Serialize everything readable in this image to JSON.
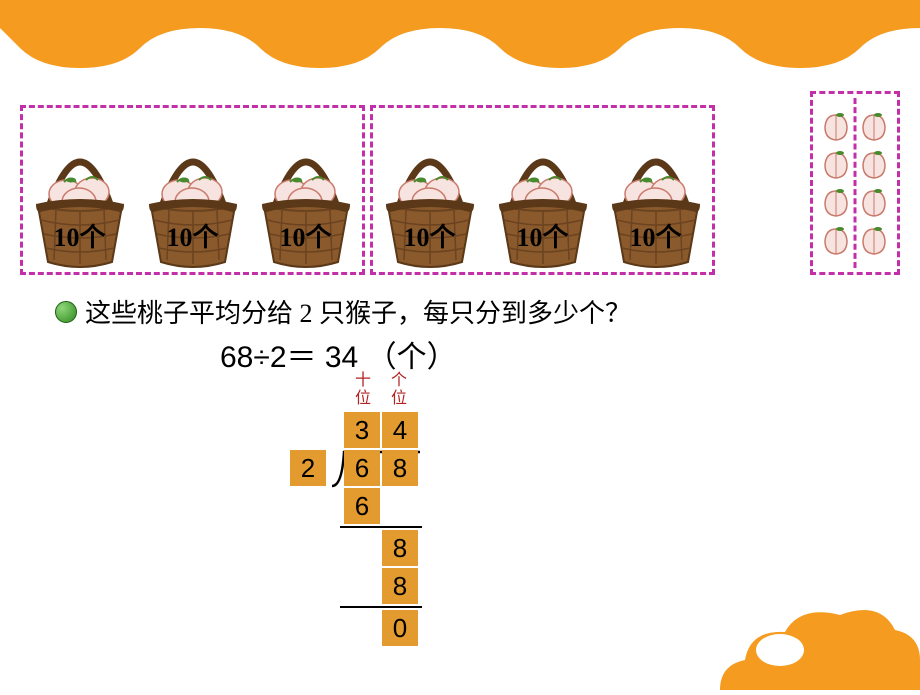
{
  "colors": {
    "orange": "#f59b1f",
    "dashed": "#c22fa8",
    "basket_body": "#8a5a2c",
    "basket_body_dark": "#6b4320",
    "basket_rim": "#5a3818",
    "peach_fill": "#f7e3e0",
    "peach_stroke": "#c97a6b",
    "leaf": "#4a8a2e",
    "box_fill": "#e39a2e",
    "place_label": "#b22222"
  },
  "baskets": {
    "count": 6,
    "label": "10个",
    "group1_count": 3,
    "group2_count": 3
  },
  "loose_peaches": {
    "rows": 4,
    "cols": 2
  },
  "question": "这些桃子平均分给 2 只猴子，每只分到多少个？",
  "equation": {
    "expr": "68÷2＝",
    "result": "34",
    "unit": "（个）"
  },
  "place_labels": {
    "tens": "十位",
    "ones": "个位"
  },
  "longdiv": {
    "divisor": "2",
    "quotient_tens": "3",
    "quotient_ones": "4",
    "dividend_tens": "6",
    "dividend_ones": "8",
    "sub1": "6",
    "bring_down": "8",
    "sub2": "8",
    "remainder": "0"
  }
}
